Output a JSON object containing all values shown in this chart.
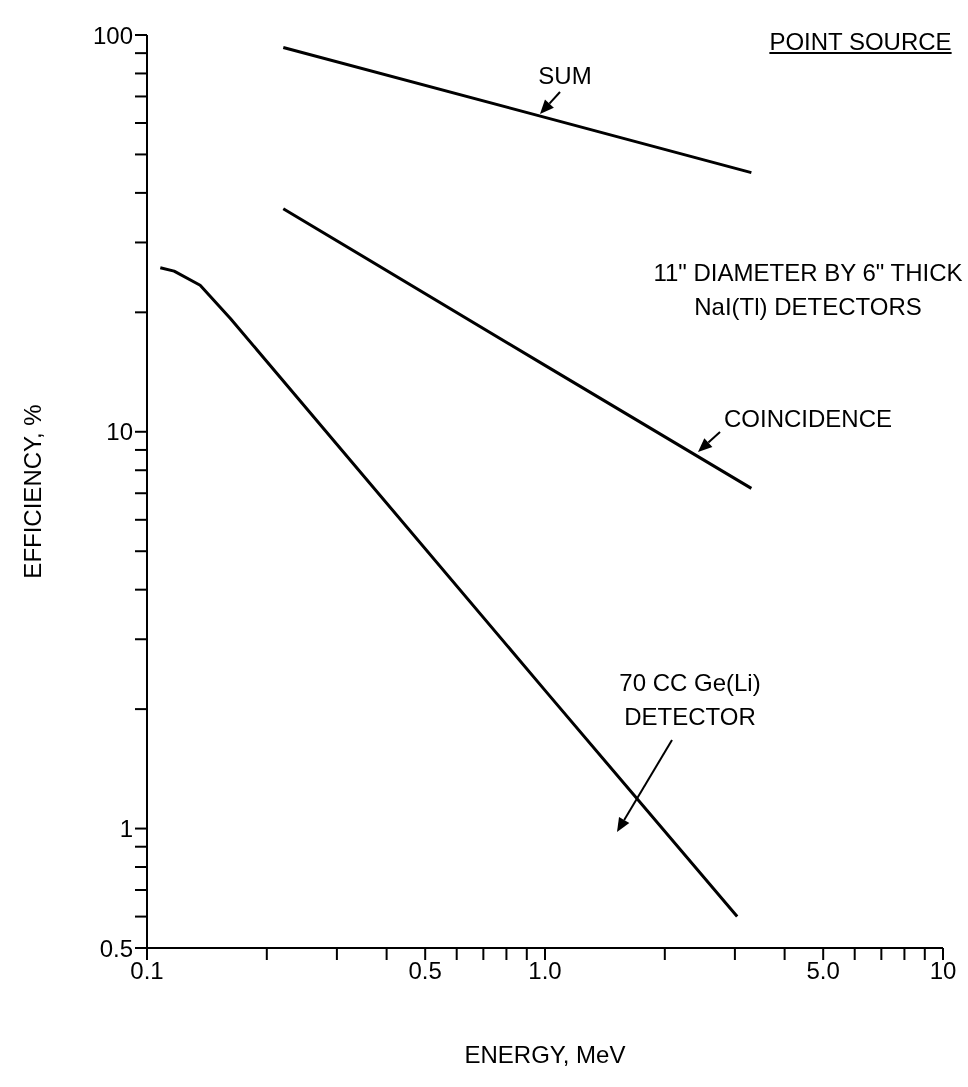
{
  "chart_data": {
    "type": "line",
    "xlabel": "ENERGY, MeV",
    "ylabel": "EFFICIENCY, %",
    "log": "xy",
    "xlim": [
      0.1,
      10
    ],
    "ylim": [
      0.5,
      100
    ],
    "xticks": [
      {
        "value": 0.1,
        "label": "0.1"
      },
      {
        "value": 0.2,
        "label": null
      },
      {
        "value": 0.3,
        "label": null
      },
      {
        "value": 0.4,
        "label": null
      },
      0.5,
      {
        "value": 0.6,
        "label": null
      },
      {
        "value": 0.7,
        "label": null
      },
      {
        "value": 0.8,
        "label": null
      },
      {
        "value": 0.9,
        "label": null
      },
      {
        "value": 1,
        "label": "1.0"
      },
      {
        "value": 2,
        "label": null
      },
      {
        "value": 3,
        "label": null
      },
      {
        "value": 4,
        "label": null
      },
      {
        "value": 5,
        "label": "5.0"
      },
      {
        "value": 6,
        "label": null
      },
      {
        "value": 7,
        "label": null
      },
      {
        "value": 8,
        "label": null
      },
      {
        "value": 9,
        "label": null
      },
      10
    ],
    "yticks": [
      0.5,
      {
        "value": 0.6,
        "label": null
      },
      {
        "value": 0.7,
        "label": null
      },
      {
        "value": 0.8,
        "label": null
      },
      {
        "value": 0.9,
        "label": null
      },
      1,
      {
        "value": 2,
        "label": null
      },
      {
        "value": 3,
        "label": null
      },
      {
        "value": 4,
        "label": null
      },
      {
        "value": 5,
        "label": null
      },
      {
        "value": 6,
        "label": null
      },
      {
        "value": 7,
        "label": null
      },
      {
        "value": 8,
        "label": null
      },
      {
        "value": 9,
        "label": null
      },
      10,
      {
        "value": 20,
        "label": null
      },
      {
        "value": 30,
        "label": null
      },
      {
        "value": 40,
        "label": null
      },
      {
        "value": 50,
        "label": null
      },
      {
        "value": 60,
        "label": null
      },
      {
        "value": 70,
        "label": null
      },
      {
        "value": 80,
        "label": null
      },
      {
        "value": 90,
        "label": null
      },
      100
    ],
    "series": [
      {
        "name": "SUM",
        "color": "#000000",
        "x": [
          0.22,
          1,
          3.3
        ],
        "values": [
          93,
          62,
          45
        ]
      },
      {
        "name": "COINCIDENCE",
        "color": "#000000",
        "x": [
          0.22,
          1,
          3.3
        ],
        "values": [
          36.5,
          14.7,
          7.2
        ]
      },
      {
        "name": "70 CC Ge(Li) DETECTOR",
        "color": "#000000",
        "x": [
          0.108,
          0.117,
          0.136,
          0.162,
          1,
          3.04
        ],
        "values": [
          25.9,
          25.4,
          23.4,
          19.3,
          2.23,
          0.6
        ]
      }
    ],
    "annotations": [
      "POINT SOURCE",
      "11\" DIAMETER BY 6\" THICK NaI(Tl) DETECTORS"
    ]
  }
}
